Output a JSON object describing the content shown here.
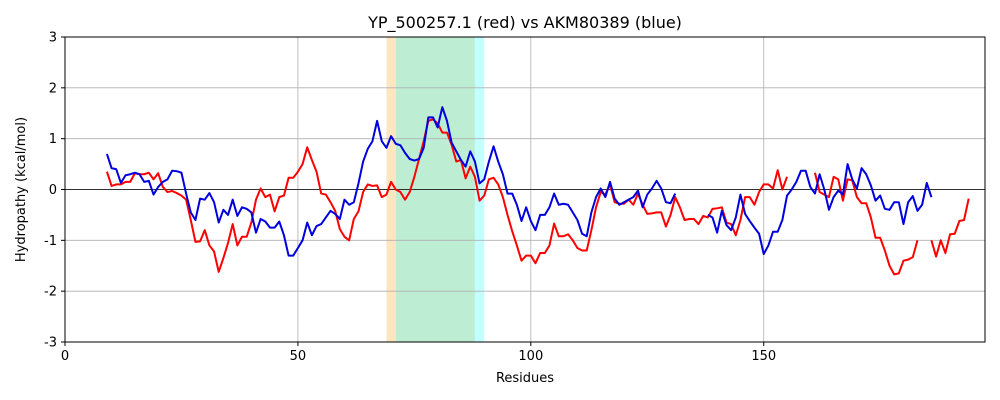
{
  "chart_data": {
    "type": "line",
    "title": "YP_500257.1 (red) vs AKM80389 (blue)",
    "x_label": "Residues",
    "y_label": "Hydropathy (kcal/mol)",
    "xlim": [
      0,
      197.5
    ],
    "ylim": [
      -3,
      3
    ],
    "xticks": [
      0,
      50,
      100,
      150
    ],
    "yticks": [
      -3,
      -2,
      -1,
      0,
      1,
      2,
      3
    ],
    "grid": true,
    "hline": 0,
    "hline_color": "#000000",
    "spans": [
      {
        "range": [
          69,
          71
        ],
        "color": "#fde6c0"
      },
      {
        "range": [
          71,
          88
        ],
        "color": "#bdeed3"
      },
      {
        "range": [
          88,
          90
        ],
        "color": "#c4ffff"
      }
    ],
    "x": [
      9,
      10,
      11,
      12,
      13,
      14,
      15,
      16,
      17,
      18,
      19,
      20,
      21,
      22,
      23,
      24,
      25,
      26,
      27,
      28,
      29,
      30,
      31,
      32,
      33,
      34,
      35,
      36,
      37,
      38,
      39,
      40,
      41,
      42,
      43,
      44,
      45,
      46,
      47,
      48,
      49,
      50,
      51,
      52,
      53,
      54,
      55,
      56,
      57,
      58,
      59,
      60,
      61,
      62,
      63,
      64,
      65,
      66,
      67,
      68,
      69,
      70,
      71,
      72,
      73,
      74,
      75,
      76,
      77,
      78,
      79,
      80,
      81,
      82,
      83,
      84,
      85,
      86,
      87,
      88,
      89,
      90,
      91,
      92,
      93,
      94,
      95,
      96,
      97,
      98,
      99,
      100,
      101,
      102,
      103,
      104,
      105,
      106,
      107,
      108,
      109,
      110,
      111,
      112,
      113,
      114,
      115,
      116,
      117,
      118,
      119,
      120,
      121,
      122,
      123,
      124,
      125,
      126,
      127,
      128,
      129,
      130,
      131,
      132,
      133,
      134,
      135,
      136,
      137,
      138,
      139,
      140,
      141,
      142,
      143,
      144,
      145,
      146,
      147,
      148,
      149,
      150,
      151,
      152,
      153,
      154,
      155,
      156,
      157,
      158,
      159,
      160,
      161,
      162,
      163,
      164,
      165,
      166,
      167,
      168,
      169,
      170,
      171,
      172,
      173,
      174,
      175,
      176,
      177,
      178,
      179,
      180,
      181,
      182,
      183,
      184,
      185,
      186,
      187,
      188,
      189,
      190,
      191,
      192,
      193,
      194
    ],
    "series": [
      {
        "name": "YP_500257.1",
        "color": "#ff0000",
        "values": [
          0.35,
          0.07,
          0.1,
          0.1,
          0.15,
          0.15,
          0.32,
          0.3,
          0.3,
          0.33,
          0.2,
          0.32,
          0.05,
          -0.05,
          -0.03,
          -0.07,
          -0.12,
          -0.2,
          -0.6,
          -1.03,
          -1.02,
          -0.8,
          -1.1,
          -1.22,
          -1.62,
          -1.35,
          -1.05,
          -0.68,
          -1.1,
          -0.93,
          -0.93,
          -0.65,
          -0.2,
          0.02,
          -0.15,
          -0.1,
          -0.43,
          -0.15,
          -0.12,
          0.23,
          0.23,
          0.35,
          0.5,
          0.83,
          0.58,
          0.35,
          -0.08,
          -0.1,
          -0.25,
          -0.42,
          -0.78,
          -0.93,
          -1.0,
          -0.58,
          -0.43,
          -0.05,
          0.1,
          0.07,
          0.08,
          -0.15,
          -0.1,
          0.15,
          0.0,
          -0.05,
          -0.2,
          -0.05,
          0.25,
          0.6,
          0.95,
          1.35,
          1.38,
          1.3,
          1.12,
          1.12,
          0.88,
          0.55,
          0.58,
          0.22,
          0.45,
          0.25,
          -0.22,
          -0.12,
          0.2,
          0.23,
          0.1,
          -0.15,
          -0.5,
          -0.82,
          -1.1,
          -1.4,
          -1.3,
          -1.3,
          -1.45,
          -1.25,
          -1.25,
          -1.1,
          -0.67,
          -0.92,
          -0.92,
          -0.88,
          -1.0,
          -1.15,
          -1.2,
          -1.2,
          -0.8,
          -0.35,
          -0.05,
          -0.1,
          0.1,
          -0.25,
          -0.28,
          -0.28,
          -0.2,
          -0.3,
          -0.08,
          -0.3,
          -0.48,
          -0.47,
          -0.45,
          -0.45,
          -0.73,
          -0.5,
          -0.15,
          -0.35,
          -0.6,
          -0.58,
          -0.58,
          -0.68,
          -0.52,
          -0.55,
          -0.38,
          -0.37,
          -0.35,
          -0.65,
          -0.68,
          -0.9,
          -0.6,
          -0.15,
          -0.15,
          -0.3,
          -0.05,
          0.1,
          0.1,
          0.02,
          0.38,
          0.0,
          0.25,
          null,
          null,
          null,
          null,
          null,
          0.33,
          -0.05,
          -0.1,
          -0.15,
          0.25,
          0.2,
          -0.22,
          0.2,
          0.18,
          -0.15,
          -0.27,
          -0.27,
          -0.55,
          -0.95,
          -0.95,
          -1.2,
          -1.5,
          -1.67,
          -1.65,
          -1.4,
          -1.38,
          -1.33,
          -1.0,
          null,
          null,
          -1.0,
          -1.32,
          -1.0,
          -1.25,
          -0.88,
          -0.87,
          -0.62,
          -0.6,
          -0.18
        ]
      },
      {
        "name": "AKM80389",
        "color": "#0000dd",
        "values": [
          0.7,
          0.42,
          0.4,
          0.13,
          0.28,
          0.3,
          0.33,
          0.3,
          0.15,
          0.17,
          -0.1,
          0.05,
          0.15,
          0.2,
          0.37,
          0.36,
          0.33,
          -0.08,
          -0.45,
          -0.6,
          -0.18,
          -0.2,
          -0.07,
          -0.25,
          -0.65,
          -0.4,
          -0.5,
          -0.2,
          -0.52,
          -0.35,
          -0.38,
          -0.45,
          -0.85,
          -0.58,
          -0.63,
          -0.75,
          -0.75,
          -0.63,
          -0.9,
          -1.3,
          -1.3,
          -1.15,
          -1.0,
          -0.65,
          -0.9,
          -0.72,
          -0.68,
          -0.55,
          -0.42,
          -0.48,
          -0.58,
          -0.2,
          -0.3,
          -0.25,
          0.12,
          0.55,
          0.8,
          0.95,
          1.35,
          0.95,
          0.82,
          1.05,
          0.9,
          0.87,
          0.72,
          0.6,
          0.57,
          0.6,
          0.82,
          1.42,
          1.42,
          1.22,
          1.62,
          1.35,
          0.92,
          0.75,
          0.58,
          0.45,
          0.75,
          0.55,
          0.12,
          0.2,
          0.55,
          0.85,
          0.55,
          0.3,
          -0.08,
          -0.08,
          -0.3,
          -0.62,
          -0.35,
          -0.62,
          -0.8,
          -0.5,
          -0.5,
          -0.35,
          -0.08,
          -0.3,
          -0.28,
          -0.3,
          -0.45,
          -0.6,
          -0.87,
          -0.92,
          -0.45,
          -0.15,
          0.02,
          -0.15,
          0.15,
          -0.18,
          -0.3,
          -0.25,
          -0.2,
          -0.15,
          -0.02,
          -0.35,
          -0.1,
          0.02,
          0.17,
          0.02,
          -0.25,
          -0.27,
          -0.08,
          null,
          null,
          null,
          null,
          null,
          null,
          -0.5,
          -0.55,
          -0.85,
          -0.42,
          -0.7,
          -0.8,
          -0.55,
          -0.1,
          -0.48,
          -0.62,
          -0.75,
          -0.87,
          -1.27,
          -1.1,
          -0.83,
          -0.83,
          -0.6,
          -0.12,
          0.0,
          0.15,
          0.37,
          0.37,
          0.05,
          -0.08,
          0.3,
          0.0,
          -0.4,
          -0.15,
          -0.02,
          -0.1,
          0.5,
          0.2,
          0.02,
          0.42,
          0.3,
          0.08,
          -0.22,
          -0.12,
          -0.38,
          -0.4,
          -0.25,
          -0.25,
          -0.68,
          -0.25,
          -0.13,
          -0.42,
          -0.3,
          0.13,
          -0.15,
          null,
          null,
          null,
          null,
          null,
          null,
          null,
          null
        ]
      }
    ]
  }
}
